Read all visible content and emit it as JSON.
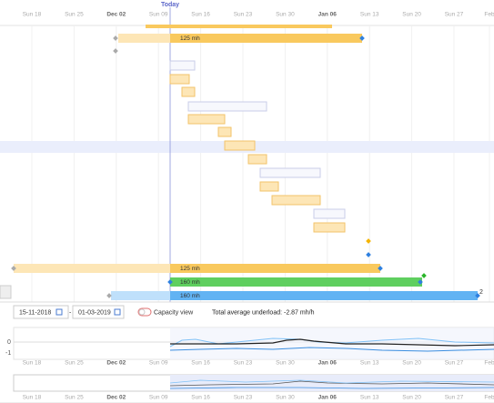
{
  "header": {
    "today": "Today",
    "dates": [
      "Sun 18",
      "Sun 25",
      "Dec 02",
      "Sun 09",
      "Sun 16",
      "Sun 23",
      "Sun 30",
      "Jan 06",
      "Sun 13",
      "Sun 20",
      "Sun 27",
      "Feb"
    ]
  },
  "bars": [
    {
      "label": "125 mh"
    },
    {
      "label": "125 mh"
    },
    {
      "label": "160 mh"
    },
    {
      "label": "160 mh"
    }
  ],
  "badge": "2",
  "controls": {
    "start_date": "15-11-2018",
    "separator": "-",
    "end_date": "01-03-2019",
    "capacity_toggle": "Capacity view",
    "summary": "Total average underload: -2.87 mh/h"
  },
  "capacity_chart": {
    "y_labels": [
      "0",
      "-1"
    ]
  }
}
